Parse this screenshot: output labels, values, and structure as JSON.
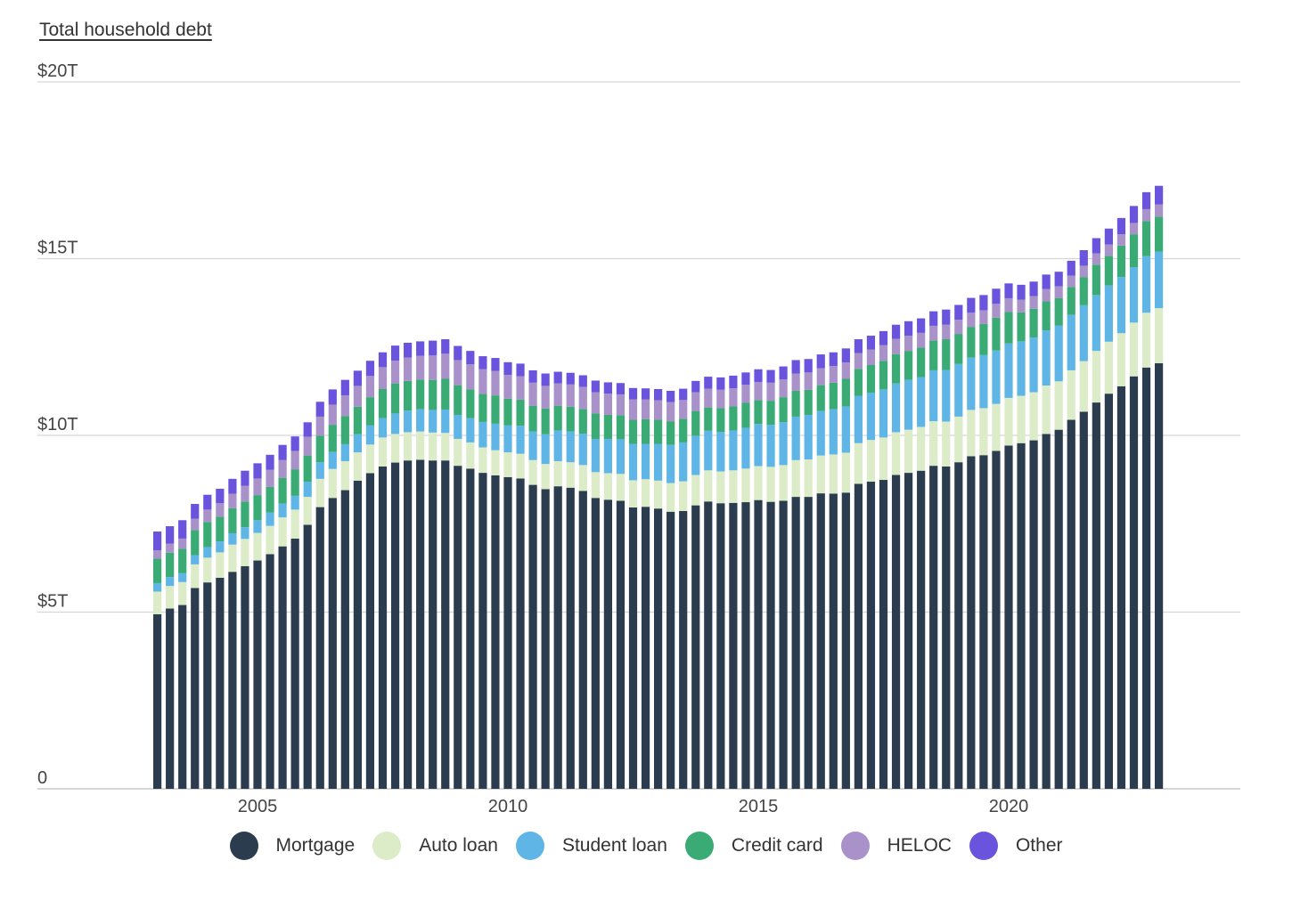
{
  "chart_data": {
    "type": "bar",
    "stacked": true,
    "title": "Total household debt",
    "yticks": [
      "0",
      "$5T",
      "$10T",
      "$15T",
      "$20T"
    ],
    "ylim": [
      0,
      20
    ],
    "x_ticks": [
      "2005",
      "2010",
      "2015",
      "2020"
    ],
    "grid": true,
    "legend_position": "bottom",
    "x": [
      "2003Q1",
      "2003Q2",
      "2003Q3",
      "2003Q4",
      "2004Q1",
      "2004Q2",
      "2004Q3",
      "2004Q4",
      "2005Q1",
      "2005Q2",
      "2005Q3",
      "2005Q4",
      "2006Q1",
      "2006Q2",
      "2006Q3",
      "2006Q4",
      "2007Q1",
      "2007Q2",
      "2007Q3",
      "2007Q4",
      "2008Q1",
      "2008Q2",
      "2008Q3",
      "2008Q4",
      "2009Q1",
      "2009Q2",
      "2009Q3",
      "2009Q4",
      "2010Q1",
      "2010Q2",
      "2010Q3",
      "2010Q4",
      "2011Q1",
      "2011Q2",
      "2011Q3",
      "2011Q4",
      "2012Q1",
      "2012Q2",
      "2012Q3",
      "2012Q4",
      "2013Q1",
      "2013Q2",
      "2013Q3",
      "2013Q4",
      "2014Q1",
      "2014Q2",
      "2014Q3",
      "2014Q4",
      "2015Q1",
      "2015Q2",
      "2015Q3",
      "2015Q4",
      "2016Q1",
      "2016Q2",
      "2016Q3",
      "2016Q4",
      "2017Q1",
      "2017Q2",
      "2017Q3",
      "2017Q4",
      "2018Q1",
      "2018Q2",
      "2018Q3",
      "2018Q4",
      "2019Q1",
      "2019Q2",
      "2019Q3",
      "2019Q4",
      "2020Q1",
      "2020Q2",
      "2020Q3",
      "2020Q4",
      "2021Q1",
      "2021Q2",
      "2021Q3",
      "2021Q4",
      "2022Q1",
      "2022Q2",
      "2022Q3",
      "2022Q4",
      "2023Q1"
    ],
    "series": [
      {
        "name": "Mortgage",
        "color": "#2b3c4e",
        "values": [
          4.94,
          5.1,
          5.2,
          5.68,
          5.84,
          5.97,
          6.14,
          6.3,
          6.46,
          6.64,
          6.86,
          7.08,
          7.47,
          7.97,
          8.23,
          8.45,
          8.72,
          8.93,
          9.12,
          9.23,
          9.29,
          9.31,
          9.29,
          9.29,
          9.14,
          9.06,
          8.94,
          8.87,
          8.82,
          8.78,
          8.6,
          8.48,
          8.56,
          8.52,
          8.43,
          8.23,
          8.18,
          8.15,
          7.96,
          7.98,
          7.93,
          7.84,
          7.86,
          8.02,
          8.13,
          8.08,
          8.09,
          8.11,
          8.17,
          8.12,
          8.15,
          8.26,
          8.26,
          8.36,
          8.35,
          8.38,
          8.63,
          8.69,
          8.74,
          8.88,
          8.94,
          9.0,
          9.14,
          9.12,
          9.24,
          9.41,
          9.44,
          9.56,
          9.71,
          9.78,
          9.86,
          10.04,
          10.16,
          10.44,
          10.67,
          10.93,
          11.18,
          11.39,
          11.67,
          11.92,
          12.04
        ]
      },
      {
        "name": "Auto loan",
        "color": "#dcebc8",
        "values": [
          0.64,
          0.64,
          0.65,
          0.67,
          0.7,
          0.72,
          0.77,
          0.77,
          0.78,
          0.8,
          0.82,
          0.82,
          0.79,
          0.8,
          0.82,
          0.82,
          0.8,
          0.81,
          0.82,
          0.81,
          0.8,
          0.8,
          0.79,
          0.78,
          0.76,
          0.74,
          0.72,
          0.71,
          0.7,
          0.7,
          0.7,
          0.71,
          0.71,
          0.72,
          0.73,
          0.73,
          0.75,
          0.76,
          0.77,
          0.78,
          0.79,
          0.81,
          0.84,
          0.86,
          0.88,
          0.9,
          0.92,
          0.95,
          0.96,
          0.99,
          1.01,
          1.04,
          1.06,
          1.07,
          1.11,
          1.13,
          1.15,
          1.18,
          1.2,
          1.21,
          1.22,
          1.24,
          1.26,
          1.27,
          1.29,
          1.31,
          1.33,
          1.33,
          1.35,
          1.34,
          1.36,
          1.37,
          1.37,
          1.4,
          1.43,
          1.46,
          1.47,
          1.5,
          1.52,
          1.55,
          1.56
        ]
      },
      {
        "name": "Student loan",
        "color": "#5fb6e6",
        "values": [
          0.24,
          0.25,
          0.25,
          0.26,
          0.3,
          0.31,
          0.32,
          0.33,
          0.36,
          0.38,
          0.39,
          0.39,
          0.43,
          0.47,
          0.48,
          0.48,
          0.51,
          0.54,
          0.55,
          0.58,
          0.61,
          0.63,
          0.64,
          0.66,
          0.68,
          0.69,
          0.72,
          0.75,
          0.76,
          0.79,
          0.81,
          0.84,
          0.87,
          0.87,
          0.89,
          0.94,
          0.97,
          0.98,
          1.03,
          1.0,
          1.04,
          1.08,
          1.1,
          1.11,
          1.12,
          1.12,
          1.13,
          1.15,
          1.19,
          1.19,
          1.21,
          1.23,
          1.26,
          1.26,
          1.28,
          1.31,
          1.34,
          1.34,
          1.36,
          1.38,
          1.41,
          1.41,
          1.44,
          1.46,
          1.49,
          1.48,
          1.5,
          1.51,
          1.54,
          1.54,
          1.55,
          1.56,
          1.58,
          1.57,
          1.58,
          1.58,
          1.59,
          1.59,
          1.57,
          1.6,
          1.6
        ]
      },
      {
        "name": "Credit card",
        "color": "#3aab74",
        "values": [
          0.69,
          0.69,
          0.69,
          0.71,
          0.71,
          0.7,
          0.71,
          0.73,
          0.71,
          0.72,
          0.73,
          0.75,
          0.74,
          0.75,
          0.77,
          0.8,
          0.78,
          0.8,
          0.82,
          0.85,
          0.84,
          0.84,
          0.85,
          0.87,
          0.84,
          0.81,
          0.79,
          0.8,
          0.76,
          0.74,
          0.73,
          0.73,
          0.7,
          0.7,
          0.7,
          0.72,
          0.68,
          0.68,
          0.68,
          0.7,
          0.68,
          0.67,
          0.67,
          0.7,
          0.66,
          0.67,
          0.68,
          0.71,
          0.68,
          0.68,
          0.71,
          0.73,
          0.71,
          0.73,
          0.75,
          0.78,
          0.76,
          0.78,
          0.81,
          0.83,
          0.82,
          0.83,
          0.84,
          0.87,
          0.85,
          0.87,
          0.88,
          0.93,
          0.89,
          0.82,
          0.81,
          0.82,
          0.77,
          0.79,
          0.8,
          0.86,
          0.84,
          0.89,
          0.93,
          0.99,
          0.99
        ]
      },
      {
        "name": "HELOC",
        "color": "#a992c9",
        "values": [
          0.24,
          0.26,
          0.29,
          0.32,
          0.35,
          0.38,
          0.41,
          0.44,
          0.47,
          0.49,
          0.5,
          0.52,
          0.53,
          0.54,
          0.57,
          0.58,
          0.59,
          0.6,
          0.62,
          0.64,
          0.66,
          0.67,
          0.69,
          0.71,
          0.71,
          0.71,
          0.7,
          0.69,
          0.67,
          0.66,
          0.65,
          0.64,
          0.63,
          0.63,
          0.62,
          0.6,
          0.6,
          0.59,
          0.58,
          0.56,
          0.55,
          0.54,
          0.53,
          0.53,
          0.53,
          0.52,
          0.51,
          0.51,
          0.51,
          0.51,
          0.5,
          0.49,
          0.49,
          0.48,
          0.47,
          0.46,
          0.45,
          0.44,
          0.44,
          0.43,
          0.43,
          0.42,
          0.42,
          0.41,
          0.4,
          0.4,
          0.39,
          0.39,
          0.39,
          0.36,
          0.36,
          0.35,
          0.34,
          0.32,
          0.32,
          0.32,
          0.32,
          0.32,
          0.32,
          0.34,
          0.34
        ]
      },
      {
        "name": "Other",
        "color": "#6a54de",
        "values": [
          0.53,
          0.49,
          0.52,
          0.42,
          0.42,
          0.41,
          0.42,
          0.43,
          0.43,
          0.42,
          0.43,
          0.41,
          0.41,
          0.42,
          0.43,
          0.44,
          0.43,
          0.43,
          0.42,
          0.43,
          0.42,
          0.41,
          0.42,
          0.41,
          0.4,
          0.38,
          0.37,
          0.37,
          0.36,
          0.36,
          0.35,
          0.35,
          0.33,
          0.33,
          0.33,
          0.33,
          0.32,
          0.32,
          0.32,
          0.31,
          0.32,
          0.32,
          0.32,
          0.32,
          0.34,
          0.35,
          0.36,
          0.35,
          0.36,
          0.36,
          0.37,
          0.38,
          0.38,
          0.39,
          0.39,
          0.4,
          0.39,
          0.39,
          0.4,
          0.4,
          0.41,
          0.41,
          0.41,
          0.43,
          0.42,
          0.42,
          0.43,
          0.43,
          0.42,
          0.42,
          0.41,
          0.41,
          0.41,
          0.42,
          0.44,
          0.43,
          0.45,
          0.46,
          0.48,
          0.48,
          0.53
        ]
      }
    ]
  }
}
